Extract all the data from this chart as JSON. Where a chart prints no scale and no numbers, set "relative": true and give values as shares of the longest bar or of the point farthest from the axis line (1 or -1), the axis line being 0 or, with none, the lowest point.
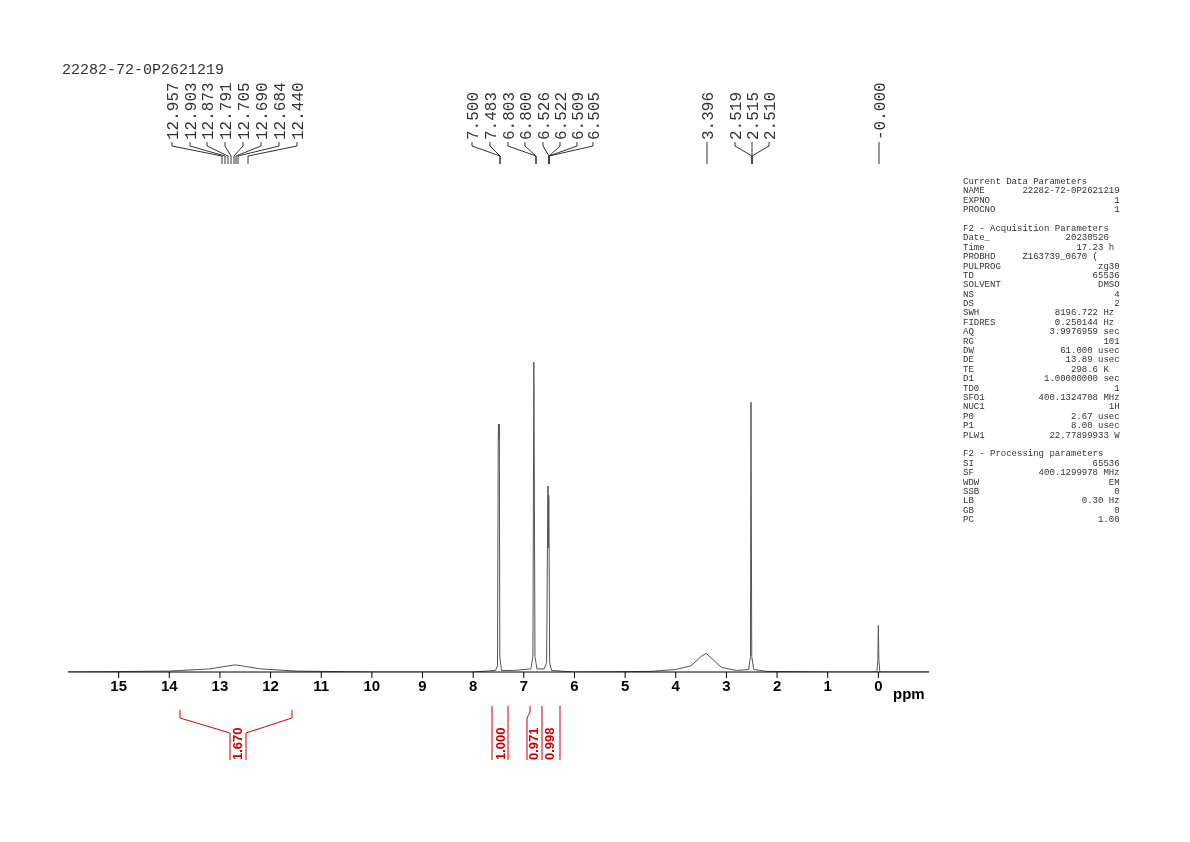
{
  "chart_data": [
    {
      "type": "line",
      "title": "22282-72-0P2621219",
      "xlabel": "ppm",
      "relative": true,
      "xlim": [
        16,
        -1
      ],
      "xticks": [
        15,
        14,
        13,
        12,
        11,
        10,
        9,
        8,
        7,
        6,
        5,
        4,
        3,
        2,
        1,
        0
      ],
      "series": [
        {
          "color": "#555555",
          "x": [
            16,
            14,
            13.2,
            12.9,
            12.7,
            12.5,
            12.2,
            11.5,
            10,
            8,
            7.56,
            7.52,
            7.505,
            7.5,
            7.49,
            7.483,
            7.475,
            7.44,
            7.2,
            6.86,
            6.82,
            6.803,
            6.8,
            6.78,
            6.74,
            6.6,
            6.55,
            6.526,
            6.522,
            6.515,
            6.509,
            6.505,
            6.49,
            6.45,
            6,
            4.5,
            4,
            3.7,
            3.5,
            3.4,
            3.3,
            3.1,
            2.8,
            2.56,
            2.525,
            2.519,
            2.515,
            2.51,
            2.5,
            2.46,
            2.2,
            1,
            0.03,
            0.01,
            0,
            -0.01,
            -0.03,
            -1
          ],
          "values": [
            0,
            0.003,
            0.01,
            0.018,
            0.023,
            0.018,
            0.01,
            0.003,
            0,
            0,
            0.005,
            0.02,
            0.75,
            0.8,
            0.75,
            0.8,
            0.05,
            0.005,
            0.005,
            0.01,
            0.05,
            1,
            0.95,
            0.05,
            0.01,
            0.01,
            0.03,
            0.58,
            0.6,
            0.4,
            0.57,
            0.55,
            0.03,
            0.005,
            0,
            0.002,
            0.008,
            0.02,
            0.05,
            0.06,
            0.045,
            0.015,
            0.005,
            0.008,
            0.05,
            0.6,
            0.87,
            0.6,
            0.05,
            0.008,
            0.002,
            0,
            0,
            0.04,
            0.15,
            0.04,
            0,
            0
          ]
        }
      ],
      "annotations": [
        "12.957",
        "12.903",
        "12.873",
        "12.791",
        "12.705",
        "12.690",
        "12.684",
        "12.440",
        "7.500",
        "7.483",
        "6.803",
        "6.800",
        "6.526",
        "6.522",
        "6.509",
        "6.505",
        "3.396",
        "2.519",
        "2.515",
        "2.510",
        "-0.000",
        "1.670",
        "1.000",
        "0.971",
        "0.998"
      ]
    },
    {
      "type": "other",
      "annotations": [
        "Current Data Parameters",
        "NAME       22282-72-0P2621219",
        "EXPNO                       1",
        "PROCNO                      1",
        "F2 - Acquisition Parameters",
        "Date_              20230526",
        "Time                 17.23 h",
        "PROBHD     Z163739_0670 (",
        "PULPROG                  zg30",
        "TD                      65536",
        "SOLVENT                  DMSO",
        "NS                          4",
        "DS                          2",
        "SWH              8196.722 Hz",
        "FIDRES           0.250144 Hz",
        "AQ              3.9976959 sec",
        "RG                        101",
        "DW                61.000 usec",
        "DE                 13.89 usec",
        "TE                  298.6 K",
        "D1             1.00000000 sec",
        "TD0                         1",
        "SFO1          400.1324708 MHz",
        "NUC1                       1H",
        "P0                  2.67 usec",
        "P1                  8.00 usec",
        "PLW1            22.77899933 W",
        "F2 - Processing parameters",
        "SI                      65536",
        "SF            400.1299978 MHz",
        "WDW                        EM",
        "SSB                         0",
        "LB                    0.30 Hz",
        "GB                          0",
        "PC                       1.00"
      ]
    }
  ]
}
